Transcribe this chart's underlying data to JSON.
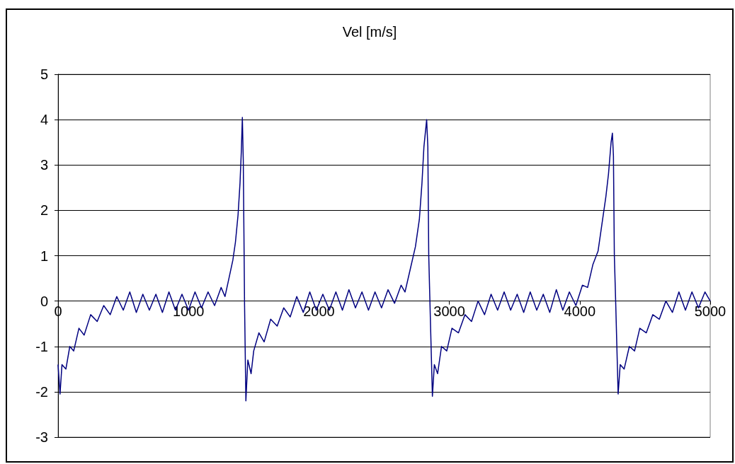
{
  "chart_data": {
    "type": "line",
    "title": "Vel [m/s]",
    "x": [
      0,
      15,
      30,
      60,
      90,
      120,
      160,
      200,
      250,
      300,
      350,
      400,
      450,
      500,
      550,
      600,
      650,
      700,
      750,
      800,
      850,
      900,
      950,
      1000,
      1050,
      1100,
      1150,
      1200,
      1250,
      1280,
      1310,
      1340,
      1360,
      1380,
      1395,
      1405,
      1413,
      1420,
      1425,
      1430,
      1440,
      1455,
      1480,
      1500,
      1540,
      1580,
      1630,
      1680,
      1730,
      1780,
      1830,
      1880,
      1930,
      1980,
      2030,
      2080,
      2130,
      2180,
      2230,
      2280,
      2330,
      2380,
      2430,
      2480,
      2530,
      2580,
      2630,
      2660,
      2700,
      2740,
      2770,
      2790,
      2805,
      2826,
      2835,
      2842,
      2850,
      2870,
      2885,
      2910,
      2940,
      2980,
      3020,
      3070,
      3120,
      3170,
      3220,
      3270,
      3320,
      3370,
      3420,
      3470,
      3520,
      3570,
      3620,
      3670,
      3720,
      3770,
      3820,
      3870,
      3920,
      3970,
      4020,
      4060,
      4100,
      4140,
      4170,
      4200,
      4220,
      4240,
      4250,
      4258,
      4265,
      4275,
      4294,
      4310,
      4340,
      4380,
      4420,
      4460,
      4510,
      4560,
      4610,
      4660,
      4710,
      4760,
      4810,
      4860,
      4910,
      4960,
      5000
    ],
    "series": [
      {
        "color": "#000080",
        "values": [
          -1.4,
          -2.05,
          -1.4,
          -1.5,
          -1.0,
          -1.1,
          -0.6,
          -0.75,
          -0.3,
          -0.45,
          -0.1,
          -0.3,
          0.1,
          -0.2,
          0.2,
          -0.25,
          0.15,
          -0.2,
          0.15,
          -0.25,
          0.2,
          -0.2,
          0.15,
          -0.2,
          0.2,
          -0.15,
          0.2,
          -0.1,
          0.3,
          0.1,
          0.5,
          0.9,
          1.3,
          1.9,
          2.6,
          3.3,
          4.05,
          3.1,
          1.5,
          -0.1,
          -2.2,
          -1.3,
          -1.6,
          -1.1,
          -0.7,
          -0.9,
          -0.4,
          -0.55,
          -0.15,
          -0.35,
          0.1,
          -0.25,
          0.2,
          -0.2,
          0.15,
          -0.2,
          0.2,
          -0.2,
          0.25,
          -0.15,
          0.2,
          -0.2,
          0.2,
          -0.15,
          0.25,
          -0.05,
          0.35,
          0.2,
          0.7,
          1.2,
          1.8,
          2.6,
          3.4,
          4.0,
          3.4,
          1.0,
          0.1,
          -2.1,
          -1.4,
          -1.6,
          -1.0,
          -1.1,
          -0.6,
          -0.7,
          -0.3,
          -0.45,
          0.0,
          -0.3,
          0.15,
          -0.2,
          0.2,
          -0.2,
          0.15,
          -0.25,
          0.2,
          -0.2,
          0.15,
          -0.25,
          0.25,
          -0.2,
          0.2,
          -0.1,
          0.35,
          0.3,
          0.8,
          1.1,
          1.7,
          2.3,
          2.8,
          3.5,
          3.7,
          3.2,
          1.0,
          0.0,
          -2.05,
          -1.4,
          -1.5,
          -1.0,
          -1.1,
          -0.6,
          -0.7,
          -0.3,
          -0.4,
          0.0,
          -0.25,
          0.2,
          -0.2,
          0.2,
          -0.15,
          0.2,
          0.0
        ]
      }
    ],
    "xlim": [
      0,
      5000
    ],
    "xticks": [
      0,
      1000,
      2000,
      3000,
      4000,
      5000
    ],
    "ylim": [
      -3,
      5
    ],
    "yticks": [
      -3,
      -2,
      -1,
      0,
      1,
      2,
      3,
      4,
      5
    ],
    "grid": "y",
    "marker": "none",
    "line_style": "solid"
  }
}
